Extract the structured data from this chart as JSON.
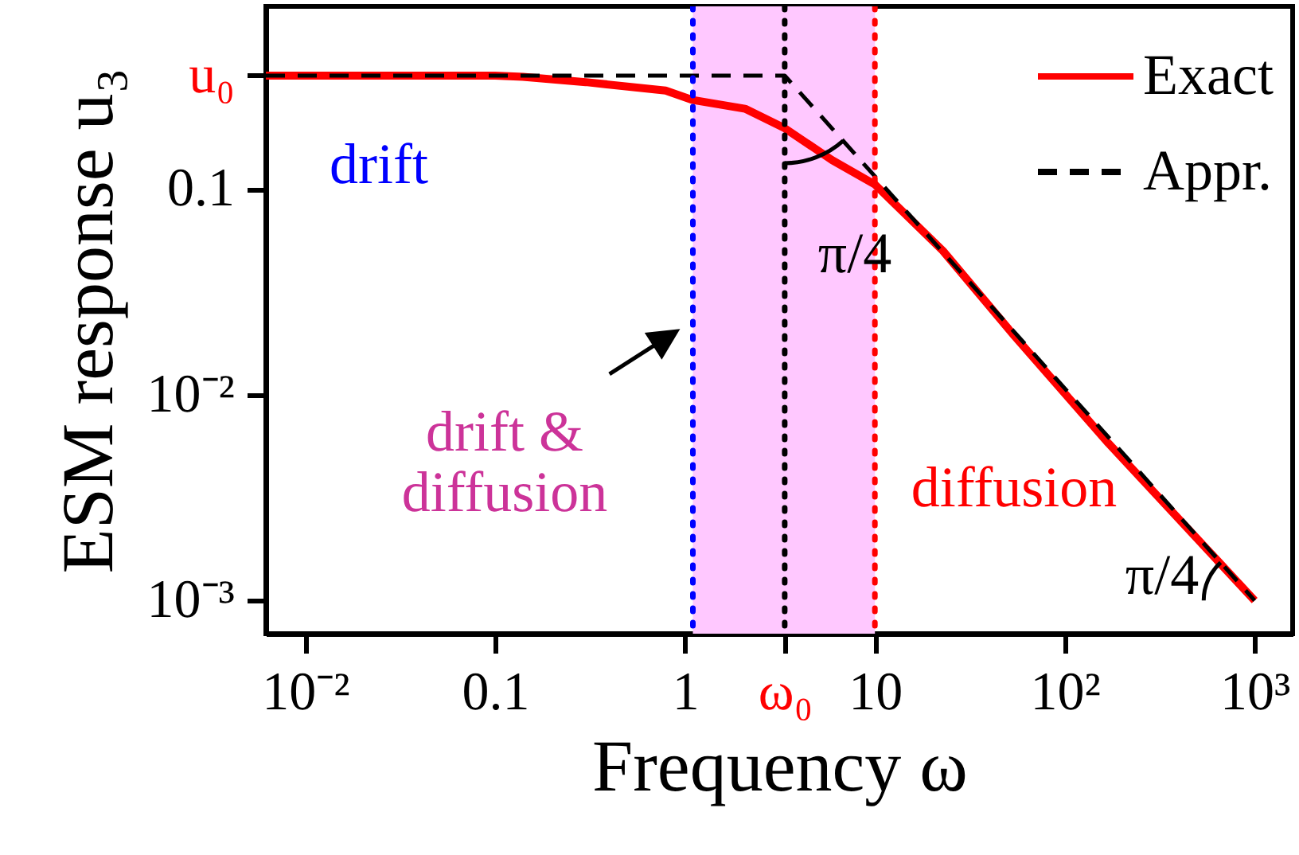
{
  "chart_data": {
    "type": "line",
    "xlabel": "Frequency   ω",
    "ylabel": "ESM response   u₃",
    "log": "xy",
    "grid": false,
    "legend": "top right",
    "marker": "none",
    "xlim": [
      0.0062,
      1585
    ],
    "ylim": [
      0.00069,
      0.77
    ],
    "xticks": [
      {
        "value": 0.01,
        "label": "10⁻²"
      },
      0.1,
      1,
      {
        "value": 3.35,
        "label": "ω₀"
      },
      10,
      {
        "value": 100,
        "label": "10²"
      },
      {
        "value": 1000,
        "label": "10³"
      }
    ],
    "yticks": [
      {
        "value": 0.001,
        "label": "10⁻³"
      },
      {
        "value": 0.01,
        "label": "10⁻²"
      },
      0.1,
      {
        "value": 0.355,
        "label": "u₀"
      }
    ],
    "series": [
      {
        "name": "Exact",
        "color": "#ff0000",
        "line_style": "solid",
        "x": [
          0.0062,
          0.1,
          0.14,
          0.3,
          0.79,
          1.1,
          2.07,
          3.35,
          5.95,
          10,
          22.8,
          54,
          170,
          1000
        ],
        "values": [
          0.355,
          0.355,
          0.35,
          0.33,
          0.3,
          0.27,
          0.245,
          0.197,
          0.138,
          0.105,
          0.05,
          0.0194,
          0.0058,
          0.001
        ]
      },
      {
        "name": "Appr.",
        "color": "#000000",
        "line_style": "dashed",
        "x": [
          0.0062,
          3.35,
          1000
        ],
        "values": [
          0.355,
          0.355,
          0.001
        ]
      }
    ],
    "ref_lines": [
      {
        "axis": "x",
        "value": 1.1,
        "color": "#0000ff",
        "line_style": "dotted"
      },
      {
        "axis": "x",
        "value": 3.35,
        "color": "#000000",
        "line_style": "dotted"
      },
      {
        "axis": "x",
        "value": 10,
        "color": "#ff0000",
        "line_style": "dotted"
      }
    ],
    "bands": [
      {
        "axis": "x",
        "from": 1.1,
        "to": 10,
        "color": "#ffc8ff"
      }
    ],
    "annotations": [
      "drift",
      "drift &\ndiffusion",
      "diffusion",
      "π/4",
      "π/4"
    ]
  }
}
